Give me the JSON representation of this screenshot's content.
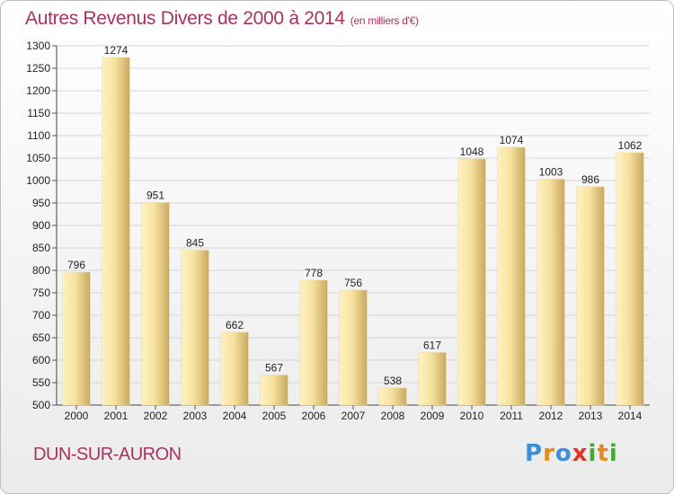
{
  "header": {
    "title": "Autres Revenus Divers de 2000 à 2014",
    "subtitle": "(en milliers d'€)"
  },
  "footer": {
    "town": "DUN-SUR-AURON",
    "logo": [
      "P",
      "r",
      "o",
      "x",
      "i",
      "t",
      "i"
    ]
  },
  "colors": {
    "bar_light": "#f7e3a0",
    "bar_dark": "#c9a961",
    "title": "#a8335e"
  },
  "chart_data": {
    "type": "bar",
    "title": "Autres Revenus Divers de 2000 à 2014",
    "subtitle": "(en milliers d'€)",
    "categories": [
      "2000",
      "2001",
      "2002",
      "2003",
      "2004",
      "2005",
      "2006",
      "2007",
      "2008",
      "2009",
      "2010",
      "2011",
      "2012",
      "2013",
      "2014"
    ],
    "values": [
      796,
      1274,
      951,
      845,
      662,
      567,
      778,
      756,
      538,
      617,
      1048,
      1074,
      1003,
      986,
      1062
    ],
    "ylim": [
      500,
      1300
    ],
    "yticks": [
      500,
      550,
      600,
      650,
      700,
      750,
      800,
      850,
      900,
      950,
      1000,
      1050,
      1100,
      1150,
      1200,
      1250,
      1300
    ],
    "grid": true,
    "legend": "none"
  }
}
